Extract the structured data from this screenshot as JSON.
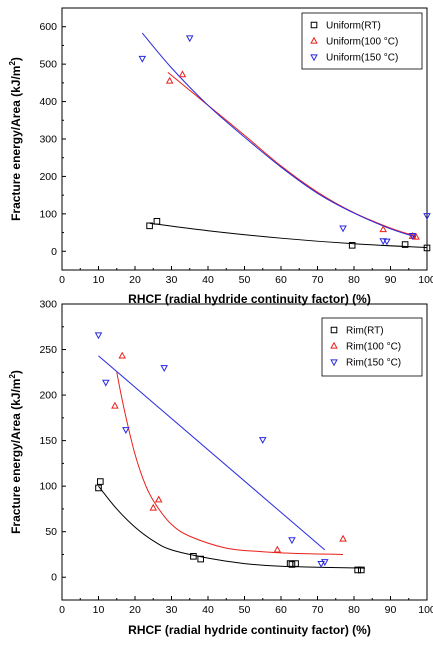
{
  "chart_data": [
    {
      "type": "scatter",
      "title": "",
      "xlabel": "RHCF (radial hydride continuity factor) (%)",
      "ylabel": "Fracture energy/Area (kJ/m²)",
      "ylabel_main": "Fracture energy/Area (kJ/m",
      "ylabel_sup": "2",
      "ylabel_end": ")",
      "xlim": [
        0,
        100
      ],
      "ylim": [
        -50,
        650
      ],
      "xticks": [
        "0",
        "10",
        "20",
        "30",
        "40",
        "50",
        "60",
        "70",
        "80",
        "90",
        "100"
      ],
      "yticks": [
        "0",
        "100",
        "200",
        "300",
        "400",
        "500",
        "600"
      ],
      "legend_position": "top-right",
      "series": [
        {
          "name": "Uniform(RT)",
          "marker": "square",
          "color": "#000000",
          "points": [
            [
              24,
              68
            ],
            [
              26,
              80
            ],
            [
              79.5,
              16
            ],
            [
              94,
              18
            ],
            [
              100,
              9
            ]
          ],
          "fit": [
            [
              24,
              75
            ],
            [
              40,
              55
            ],
            [
              60,
              35
            ],
            [
              80,
              20
            ],
            [
              100,
              10
            ]
          ]
        },
        {
          "name": "Uniform(100 °C)",
          "marker": "triangle-up",
          "color": "#e8201a",
          "points": [
            [
              29.5,
              455
            ],
            [
              33,
              472
            ],
            [
              88,
              58
            ],
            [
              96,
              40
            ],
            [
              97,
              38
            ]
          ],
          "fit": [
            [
              29,
              478
            ],
            [
              40,
              390
            ],
            [
              50,
              310
            ],
            [
              60,
              228
            ],
            [
              70,
              158
            ],
            [
              80,
              103
            ],
            [
              90,
              62
            ],
            [
              97,
              40
            ]
          ]
        },
        {
          "name": "Uniform(150 °C)",
          "marker": "triangle-down",
          "color": "#2a2ae0",
          "points": [
            [
              22,
              515
            ],
            [
              35,
              570
            ],
            [
              77,
              62
            ],
            [
              88,
              28
            ],
            [
              89,
              27
            ],
            [
              96,
              42
            ],
            [
              100,
              95
            ]
          ],
          "fit": [
            [
              22,
              583
            ],
            [
              30,
              490
            ],
            [
              40,
              390
            ],
            [
              50,
              305
            ],
            [
              60,
              225
            ],
            [
              70,
              155
            ],
            [
              80,
              102
            ],
            [
              90,
              60
            ],
            [
              97,
              38
            ]
          ]
        }
      ]
    },
    {
      "type": "scatter",
      "title": "",
      "xlabel": "RHCF (radial hydride continuity factor) (%)",
      "ylabel": "Fracture energy/Area (kJ/m²)",
      "ylabel_main": "Fracture energy/Area (kJ/m",
      "ylabel_sup": "2",
      "ylabel_end": ")",
      "xlim": [
        0,
        100
      ],
      "ylim": [
        -25,
        300
      ],
      "xticks": [
        "0",
        "10",
        "20",
        "30",
        "40",
        "50",
        "60",
        "70",
        "80",
        "90",
        "100"
      ],
      "yticks": [
        "0",
        "50",
        "100",
        "150",
        "200",
        "250",
        "300"
      ],
      "legend_position": "top-right",
      "series": [
        {
          "name": "Rim(RT)",
          "marker": "square",
          "color": "#000000",
          "points": [
            [
              10,
              98
            ],
            [
              10.5,
              105
            ],
            [
              36,
              23
            ],
            [
              38,
              20
            ],
            [
              62.5,
              15
            ],
            [
              63,
              14
            ],
            [
              64,
              15
            ],
            [
              81,
              8
            ],
            [
              82,
              8
            ]
          ],
          "fit": [
            [
              10,
              100
            ],
            [
              15,
              75
            ],
            [
              20,
              55
            ],
            [
              25,
              40
            ],
            [
              30,
              30
            ],
            [
              40,
              21
            ],
            [
              50,
              15
            ],
            [
              60,
              12
            ],
            [
              70,
              11
            ],
            [
              83,
              10
            ]
          ]
        },
        {
          "name": "Rim(100 °C)",
          "marker": "triangle-up",
          "color": "#e8201a",
          "points": [
            [
              14.5,
              188
            ],
            [
              16.5,
              243
            ],
            [
              25,
              76
            ],
            [
              26.5,
              85
            ],
            [
              59,
              30
            ],
            [
              77,
              42
            ]
          ],
          "fit": [
            [
              15,
              225
            ],
            [
              17,
              185
            ],
            [
              20,
              135
            ],
            [
              23,
              100
            ],
            [
              26,
              78
            ],
            [
              30,
              58
            ],
            [
              35,
              45
            ],
            [
              45,
              32
            ],
            [
              55,
              28
            ],
            [
              65,
              26
            ],
            [
              77,
              25
            ]
          ]
        },
        {
          "name": "Rim(150 °C)",
          "marker": "triangle-down",
          "color": "#2a2ae0",
          "points": [
            [
              10,
              266
            ],
            [
              12,
              214
            ],
            [
              17.5,
              162
            ],
            [
              28,
              230
            ],
            [
              55,
              151
            ],
            [
              63,
              41
            ],
            [
              71,
              15
            ],
            [
              72,
              17
            ]
          ],
          "fit": [
            [
              10,
              243
            ],
            [
              72,
              30
            ]
          ]
        }
      ]
    }
  ]
}
